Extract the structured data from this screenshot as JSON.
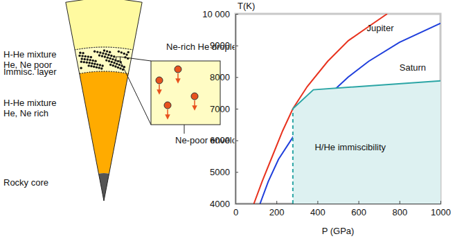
{
  "diagram": {
    "layers": [
      {
        "label": [
          "H-He mixture",
          "He, Ne poor"
        ]
      },
      {
        "label": [
          "Immisc. layer"
        ]
      },
      {
        "label": [
          "H-He mixture",
          "He, Ne rich"
        ]
      },
      {
        "label": [
          "Rocky core"
        ]
      }
    ],
    "inset": {
      "droplets_label": "Ne-rich He droplets",
      "envelope_label": "Ne-poor envelope"
    }
  },
  "chart_data": {
    "type": "line",
    "x_label": "P (GPa)",
    "y_label": "T(K)",
    "xlim": [
      0,
      1000
    ],
    "ylim": [
      4000,
      10000
    ],
    "xticks": [
      0,
      200,
      400,
      600,
      800,
      1000
    ],
    "yticks": [
      4000,
      5000,
      6000,
      7000,
      8000,
      9000,
      {
        "value": 10000,
        "label": "10 000"
      }
    ],
    "grid": false,
    "series": [
      {
        "name": "Jupiter",
        "color": "#e8321e",
        "x": [
          90,
          130,
          180,
          230,
          280,
          350,
          450,
          550,
          650,
          740
        ],
        "values": [
          4000,
          4700,
          5500,
          6300,
          7000,
          7700,
          8500,
          9150,
          9600,
          10000
        ]
      },
      {
        "name": "Saturn",
        "color": "#1f3fdc",
        "x": [
          120,
          160,
          210,
          280,
          350,
          450,
          550,
          650,
          800,
          1000
        ],
        "values": [
          4000,
          4700,
          5400,
          6100,
          6700,
          7400,
          8000,
          8500,
          9100,
          9700
        ]
      },
      {
        "name": "H/He immiscibility",
        "type": "area",
        "color": "#2aa5a5",
        "x": [
          280,
          280,
          380,
          1000
        ],
        "values": [
          4000,
          7000,
          7600,
          7880
        ]
      }
    ]
  }
}
